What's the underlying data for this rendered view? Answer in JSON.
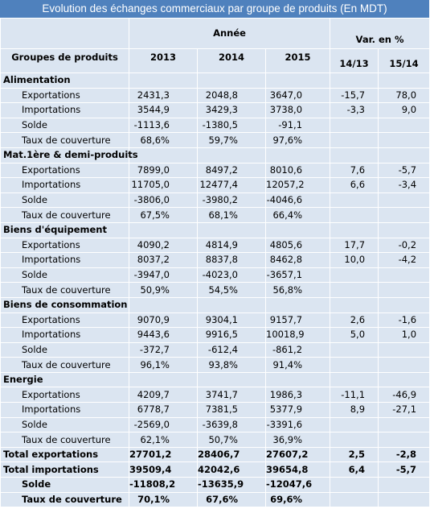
{
  "title": "Evolution des échanges commerciaux par groupe de produits  (En MDT)",
  "header": {
    "group_col": "Groupes de produits",
    "year_group": "Année",
    "years": [
      "2013",
      "2014",
      "2015"
    ],
    "var_group": "Var. en %",
    "var_cols": [
      "14/13",
      "15/14"
    ]
  },
  "groups": [
    {
      "name": "Alimentation",
      "rows": [
        {
          "label": "Exportations",
          "values": [
            "2431,3",
            "2048,8",
            "3647,0",
            "-15,7",
            "78,0"
          ]
        },
        {
          "label": "Importations",
          "values": [
            "3544,9",
            "3429,3",
            "3738,0",
            "-3,3",
            "9,0"
          ]
        },
        {
          "label": "Solde",
          "values": [
            "-1113,6",
            "-1380,5",
            "-91,1"
          ]
        },
        {
          "label": "Taux de couverture",
          "values": [
            "68,6%",
            "59,7%",
            "97,6%"
          ]
        }
      ]
    },
    {
      "name": "Mat.1ère & demi-produits",
      "rows": [
        {
          "label": "Exportations",
          "values": [
            "7899,0",
            "8497,2",
            "8010,6",
            "7,6",
            "-5,7"
          ]
        },
        {
          "label": "Importations",
          "values": [
            "11705,0",
            "12477,4",
            "12057,2",
            "6,6",
            "-3,4"
          ]
        },
        {
          "label": "Solde",
          "values": [
            "-3806,0",
            "-3980,2",
            "-4046,6"
          ]
        },
        {
          "label": "Taux de couverture",
          "values": [
            "67,5%",
            "68,1%",
            "66,4%"
          ]
        }
      ]
    },
    {
      "name": "Biens d'équipement",
      "rows": [
        {
          "label": "Exportations",
          "values": [
            "4090,2",
            "4814,9",
            "4805,6",
            "17,7",
            "-0,2"
          ]
        },
        {
          "label": "Importations",
          "values": [
            "8037,2",
            "8837,8",
            "8462,8",
            "10,0",
            "-4,2"
          ]
        },
        {
          "label": "Solde",
          "values": [
            "-3947,0",
            "-4023,0",
            "-3657,1"
          ]
        },
        {
          "label": "Taux de couverture",
          "values": [
            "50,9%",
            "54,5%",
            "56,8%"
          ]
        }
      ]
    },
    {
      "name": "Biens de consommation",
      "rows": [
        {
          "label": "Exportations",
          "values": [
            "9070,9",
            "9304,1",
            "9157,7",
            "2,6",
            "-1,6"
          ]
        },
        {
          "label": "Importations",
          "values": [
            "9443,6",
            "9916,5",
            "10018,9",
            "5,0",
            "1,0"
          ]
        },
        {
          "label": "Solde",
          "values": [
            "-372,7",
            "-612,4",
            "-861,2"
          ]
        },
        {
          "label": "Taux de couverture",
          "values": [
            "96,1%",
            "93,8%",
            "91,4%"
          ]
        }
      ]
    },
    {
      "name": "Energie",
      "rows": [
        {
          "label": "Exportations",
          "values": [
            "4209,7",
            "3741,7",
            "1986,3",
            "-11,1",
            "-46,9"
          ]
        },
        {
          "label": "Importations",
          "values": [
            "6778,7",
            "7381,5",
            "5377,9",
            "8,9",
            "-27,1"
          ]
        },
        {
          "label": "Solde",
          "values": [
            "-2569,0",
            "-3639,8",
            "-3391,6"
          ]
        },
        {
          "label": "Taux de couverture",
          "values": [
            "62,1%",
            "50,7%",
            "36,9%"
          ]
        }
      ]
    }
  ],
  "totals": [
    {
      "label": "Total exportations",
      "values": [
        "27701,2",
        "28406,7",
        "27607,2",
        "2,5",
        "-2,8"
      ]
    },
    {
      "label": "Total importations",
      "values": [
        "39509,4",
        "42042,6",
        "39654,8",
        "6,4",
        "-5,7"
      ]
    },
    {
      "label": "Solde",
      "values": [
        "-11808,2",
        "-13635,9",
        "-12047,6"
      ]
    },
    {
      "label": "Taux de couverture",
      "values": [
        "70,1%",
        "67,6%",
        "69,6%"
      ]
    }
  ]
}
